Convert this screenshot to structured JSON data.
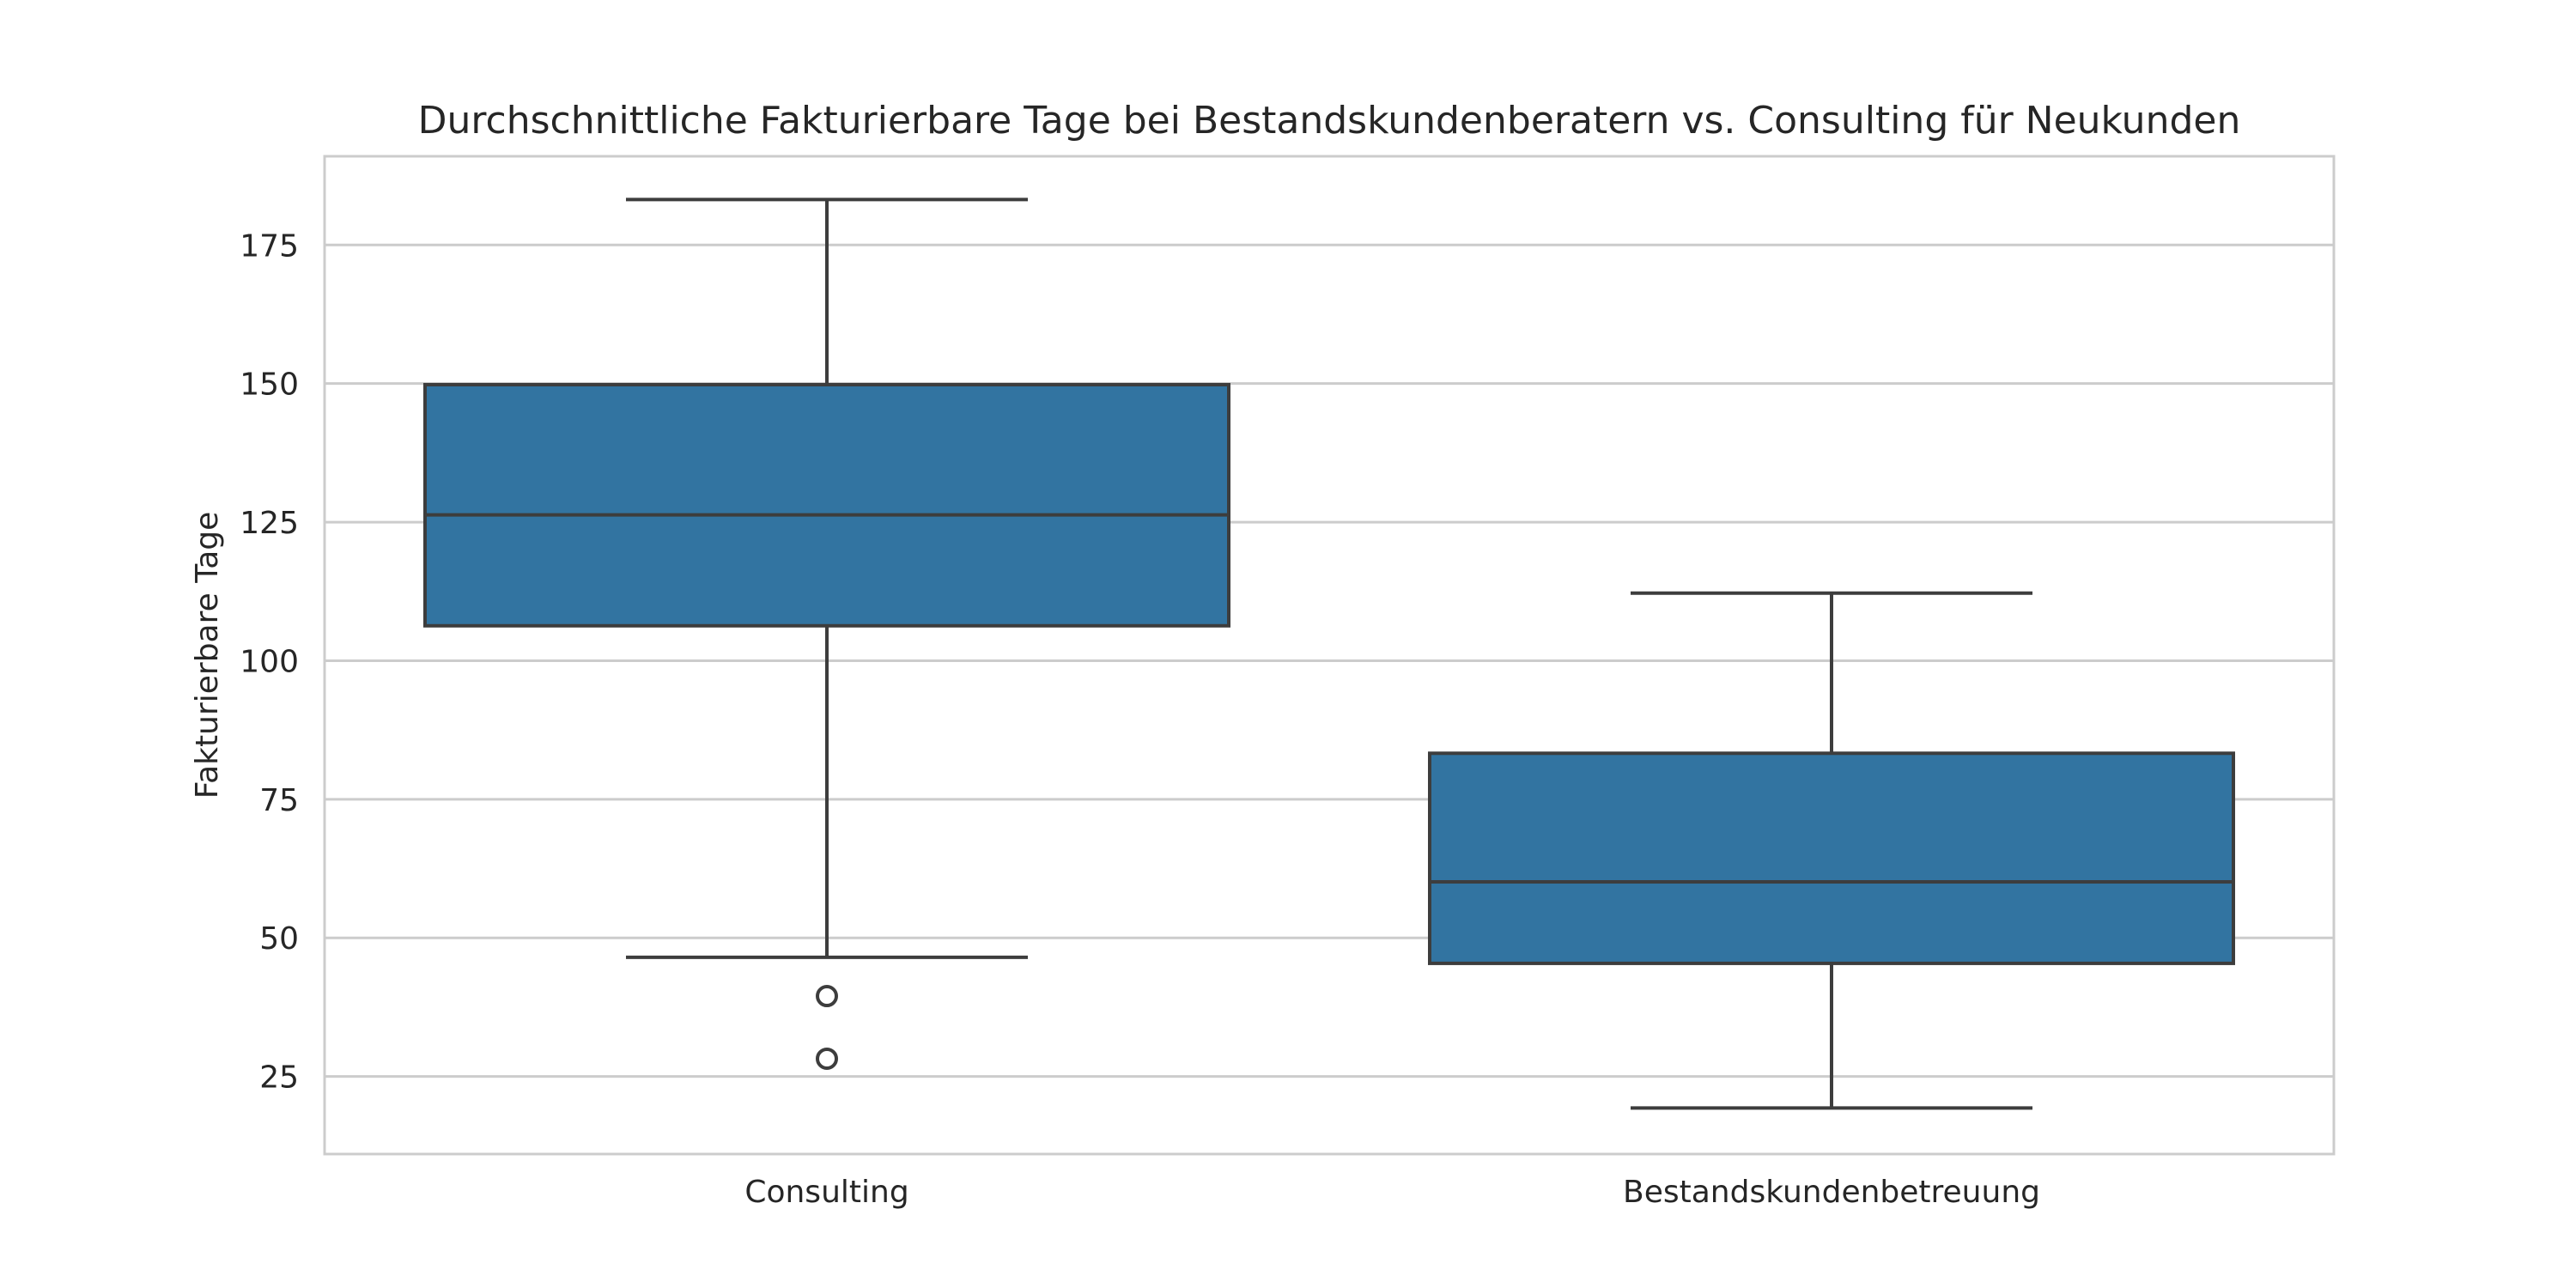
{
  "chart_data": {
    "type": "box",
    "title": "Durchschnittliche Fakturierbare Tage bei Bestandskundenberatern vs. Consulting für Neukunden",
    "xlabel": "",
    "ylabel": "Fakturierbare Tage",
    "ylim": [
      11,
      191
    ],
    "yticks": [
      25,
      50,
      75,
      100,
      125,
      150,
      175
    ],
    "grid": true,
    "categories": [
      "Consulting",
      "Bestandskundenbetreuung"
    ],
    "boxes": [
      {
        "category": "Consulting",
        "whisker_low": 46.5,
        "q1": 106.3,
        "median": 126.3,
        "q3": 149.8,
        "whisker_high": 183.2,
        "outliers": [
          39.5,
          28.2
        ]
      },
      {
        "category": "Bestandskundenbetreuung",
        "whisker_low": 19.3,
        "q1": 45.4,
        "median": 60.1,
        "q3": 83.3,
        "whisker_high": 112.2,
        "outliers": []
      }
    ],
    "colors": {
      "box_fill": "#3274a1",
      "line": "#3d3d3d",
      "grid": "#cccccc",
      "frame": "#cccccc"
    }
  }
}
